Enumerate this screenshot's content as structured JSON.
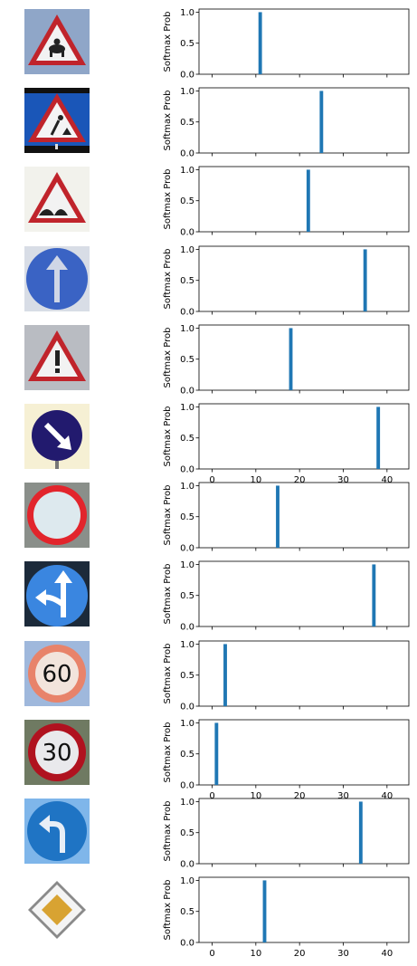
{
  "chart_data": [
    {
      "type": "bar",
      "ylabel": "Softmax Prob",
      "xlim": [
        -3,
        45
      ],
      "ylim": [
        0,
        1.05
      ],
      "xticks": [
        0,
        10,
        20,
        30,
        40
      ],
      "yticks": [
        0.0,
        0.5,
        1.0
      ],
      "x": [
        11
      ],
      "values": [
        1.0
      ],
      "show_xticklabels": false,
      "bar_color": "#1f77b4",
      "sign_icon": "wild-animals-triangle-sign"
    },
    {
      "type": "bar",
      "ylabel": "Softmax Prob",
      "xlim": [
        -3,
        45
      ],
      "ylim": [
        0,
        1.05
      ],
      "xticks": [
        0,
        10,
        20,
        30,
        40
      ],
      "yticks": [
        0.0,
        0.5,
        1.0
      ],
      "x": [
        25
      ],
      "values": [
        1.0
      ],
      "show_xticklabels": false,
      "bar_color": "#1f77b4",
      "sign_icon": "road-work-triangle-sign"
    },
    {
      "type": "bar",
      "ylabel": "Softmax Prob",
      "xlim": [
        -3,
        45
      ],
      "ylim": [
        0,
        1.05
      ],
      "xticks": [
        0,
        10,
        20,
        30,
        40
      ],
      "yticks": [
        0.0,
        0.5,
        1.0
      ],
      "x": [
        22
      ],
      "values": [
        1.0
      ],
      "show_xticklabels": false,
      "bar_color": "#1f77b4",
      "sign_icon": "bumpy-road-triangle-sign"
    },
    {
      "type": "bar",
      "ylabel": "Softmax Prob",
      "xlim": [
        -3,
        45
      ],
      "ylim": [
        0,
        1.05
      ],
      "xticks": [
        0,
        10,
        20,
        30,
        40
      ],
      "yticks": [
        0.0,
        0.5,
        1.0
      ],
      "x": [
        35
      ],
      "values": [
        1.0
      ],
      "show_xticklabels": false,
      "bar_color": "#1f77b4",
      "sign_icon": "ahead-only-round-sign"
    },
    {
      "type": "bar",
      "ylabel": "Softmax Prob",
      "xlim": [
        -3,
        45
      ],
      "ylim": [
        0,
        1.05
      ],
      "xticks": [
        0,
        10,
        20,
        30,
        40
      ],
      "yticks": [
        0.0,
        0.5,
        1.0
      ],
      "x": [
        18
      ],
      "values": [
        1.0
      ],
      "show_xticklabels": false,
      "bar_color": "#1f77b4",
      "sign_icon": "general-caution-triangle-sign"
    },
    {
      "type": "bar",
      "ylabel": "Softmax Prob",
      "xlim": [
        -3,
        45
      ],
      "ylim": [
        0,
        1.05
      ],
      "xticks": [
        0,
        10,
        20,
        30,
        40
      ],
      "yticks": [
        0.0,
        0.5,
        1.0
      ],
      "x": [
        38
      ],
      "values": [
        1.0
      ],
      "show_xticklabels": true,
      "bar_color": "#1f77b4",
      "sign_icon": "keep-right-round-sign"
    },
    {
      "type": "bar",
      "ylabel": "Softmax Prob",
      "xlim": [
        -3,
        45
      ],
      "ylim": [
        0,
        1.05
      ],
      "xticks": [
        0,
        10,
        20,
        30,
        40
      ],
      "yticks": [
        0.0,
        0.5,
        1.0
      ],
      "x": [
        15
      ],
      "values": [
        1.0
      ],
      "show_xticklabels": false,
      "bar_color": "#1f77b4",
      "sign_icon": "no-vehicles-round-sign"
    },
    {
      "type": "bar",
      "ylabel": "Softmax Prob",
      "xlim": [
        -3,
        45
      ],
      "ylim": [
        0,
        1.05
      ],
      "xticks": [
        0,
        10,
        20,
        30,
        40
      ],
      "yticks": [
        0.0,
        0.5,
        1.0
      ],
      "x": [
        37
      ],
      "values": [
        1.0
      ],
      "show_xticklabels": false,
      "bar_color": "#1f77b4",
      "sign_icon": "straight-or-left-round-sign"
    },
    {
      "type": "bar",
      "ylabel": "Softmax Prob",
      "xlim": [
        -3,
        45
      ],
      "ylim": [
        0,
        1.05
      ],
      "xticks": [
        0,
        10,
        20,
        30,
        40
      ],
      "yticks": [
        0.0,
        0.5,
        1.0
      ],
      "x": [
        3
      ],
      "values": [
        1.0
      ],
      "show_xticklabels": false,
      "bar_color": "#1f77b4",
      "sign_icon": "speed-limit-60-sign",
      "sign_text": "60"
    },
    {
      "type": "bar",
      "ylabel": "Softmax Prob",
      "xlim": [
        -3,
        45
      ],
      "ylim": [
        0,
        1.05
      ],
      "xticks": [
        0,
        10,
        20,
        30,
        40
      ],
      "yticks": [
        0.0,
        0.5,
        1.0
      ],
      "x": [
        1
      ],
      "values": [
        1.0
      ],
      "show_xticklabels": true,
      "bar_color": "#1f77b4",
      "sign_icon": "speed-limit-30-sign",
      "sign_text": "30"
    },
    {
      "type": "bar",
      "ylabel": "Softmax Prob",
      "xlim": [
        -3,
        45
      ],
      "ylim": [
        0,
        1.05
      ],
      "xticks": [
        0,
        10,
        20,
        30,
        40
      ],
      "yticks": [
        0.0,
        0.5,
        1.0
      ],
      "x": [
        34
      ],
      "values": [
        1.0
      ],
      "show_xticklabels": false,
      "bar_color": "#1f77b4",
      "sign_icon": "turn-left-ahead-round-sign"
    },
    {
      "type": "bar",
      "ylabel": "Softmax Prob",
      "xlim": [
        -3,
        45
      ],
      "ylim": [
        0,
        1.05
      ],
      "xticks": [
        0,
        10,
        20,
        30,
        40
      ],
      "yticks": [
        0.0,
        0.5,
        1.0
      ],
      "x": [
        12
      ],
      "values": [
        1.0
      ],
      "show_xticklabels": true,
      "bar_color": "#1f77b4",
      "sign_icon": "priority-road-diamond-sign"
    }
  ]
}
